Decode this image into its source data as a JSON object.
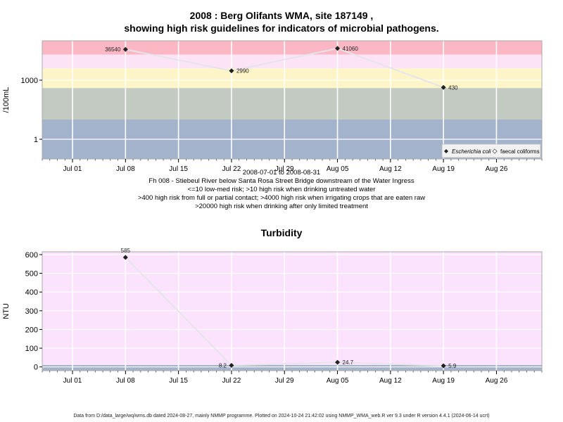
{
  "page": {
    "title_line1": "2008 : Berg Olifants WMA, site 187149 ,",
    "title_line2": "showing high risk guidelines for indicators of microbial pathogens.",
    "date_range": "2008-07-01 to 2008-08-31",
    "site_description": "Fh 008 - Stiebeul River below Santa Rosa Street Bridge downstream of the Water Ingress",
    "guideline_1": "<=10 low-med risk; >10 high risk when drinking untreated water",
    "guideline_2": ">400 high risk from full or partial contact; >4000 high risk when irrigating crops that are eaten raw",
    "guideline_3": ">20000 high risk when drinking after only limited treatment",
    "turbidity_title": "Turbidity",
    "footer": "Data from D:/data_large/wq/wms.db dated 2024-08-27, mainly NMMP programme. Plotted on 2024-10-24 21:42:02 using NMMP_WMA_web.R ver 9.3 under R version 4.4.1 (2024-06-14 ucrt)"
  },
  "chart_data": [
    {
      "type": "scatter",
      "title": "2008 : Berg Olifants WMA, site 187149 , showing high risk guidelines for indicators of microbial pathogens.",
      "ylabel": "/100mL",
      "y_scale": "log",
      "y_ticks": [
        1,
        1000
      ],
      "y_tick_labels": [
        "1",
        "1000"
      ],
      "x_ticks": [
        "2008-07-01",
        "2008-07-08",
        "2008-07-15",
        "2008-07-22",
        "2008-07-29",
        "2008-08-05",
        "2008-08-12",
        "2008-08-19",
        "2008-08-26"
      ],
      "x_tick_labels": [
        "Jul 01",
        "Jul 08",
        "Jul 15",
        "Jul 22",
        "Jul 29",
        "Aug 05",
        "Aug 12",
        "Aug 19",
        "Aug 26"
      ],
      "xlim": [
        "2008-06-27",
        "2008-09-01"
      ],
      "series": [
        {
          "name": "Escherichia coli",
          "x": [
            "2008-07-08",
            "2008-07-22",
            "2008-08-05",
            "2008-08-19"
          ],
          "y": [
            36540,
            2990,
            41060,
            430
          ],
          "labels": [
            "36540",
            "2990",
            "41060",
            "430"
          ]
        },
        {
          "name": "faecal coliforms",
          "x": [],
          "y": []
        }
      ],
      "risk_bands": [
        {
          "from": 0.1,
          "to": 10,
          "color": "#a3b3cb"
        },
        {
          "from": 10,
          "to": 400,
          "color": "#c2cac2"
        },
        {
          "from": 400,
          "to": 4000,
          "color": "#fdf5c8"
        },
        {
          "from": 4000,
          "to": 20000,
          "color": "#fce3f6"
        },
        {
          "from": 20000,
          "to": 100000,
          "color": "#fbb8c4"
        }
      ],
      "legend_position": "bottom-right",
      "grid": true
    },
    {
      "type": "scatter",
      "title": "Turbidity",
      "ylabel": "NTU",
      "ylim": [
        -20,
        615
      ],
      "y_ticks": [
        0,
        100,
        200,
        300,
        400,
        500,
        600
      ],
      "x_ticks": [
        "2008-07-01",
        "2008-07-08",
        "2008-07-15",
        "2008-07-22",
        "2008-07-29",
        "2008-08-05",
        "2008-08-12",
        "2008-08-19",
        "2008-08-26"
      ],
      "x_tick_labels": [
        "Jul 01",
        "Jul 08",
        "Jul 15",
        "Jul 22",
        "Jul 29",
        "Aug 05",
        "Aug 12",
        "Aug 19",
        "Aug 26"
      ],
      "xlim": [
        "2008-06-27",
        "2008-09-01"
      ],
      "series": [
        {
          "name": "",
          "x": [
            "2008-07-08",
            "2008-07-22",
            "2008-08-05",
            "2008-08-19"
          ],
          "y": [
            585,
            8.2,
            24.7,
            5.9
          ],
          "labels": [
            "585",
            "8.2",
            "24.7",
            "5.9"
          ]
        }
      ],
      "bands": [
        {
          "from": -20,
          "to": 10,
          "color": "#a3b3cb"
        },
        {
          "from": 10,
          "to": 615,
          "color": "#fce3fd"
        }
      ],
      "grid": true
    }
  ]
}
